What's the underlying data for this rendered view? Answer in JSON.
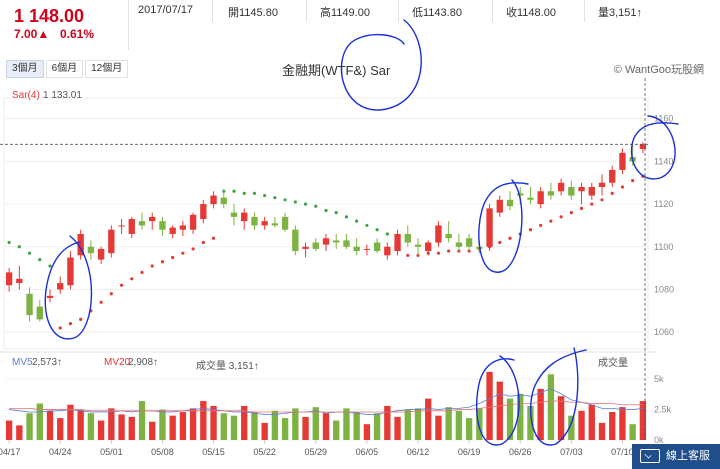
{
  "quote": {
    "price": "1 148.00",
    "change": "7.00▲",
    "change_pct": "0.61%",
    "date": "2017/07/17",
    "open": "開1145.80",
    "high": "高1149.00",
    "low": "低1143.80",
    "close": "收1148.00",
    "volume": "量3,151↑"
  },
  "tabs": [
    "3個月",
    "6個月",
    "12個月"
  ],
  "title": "金融期(WTF&) Sar",
  "brand": "© WantGoo玩股網",
  "indicator": {
    "sar_label": "Sar(4)",
    "sar_value": "1 133.01"
  },
  "volume_panel": {
    "mv5_label": "MV5",
    "mv5_value": "2,573↑",
    "mv20_label": "MV20",
    "mv20_value": "2,908↑",
    "vol_label": "成交量 3,151↑",
    "vol_name": "成交量"
  },
  "service": {
    "label": "線上客服"
  },
  "colors": {
    "up": "#e53935",
    "down": "#7cb342",
    "sar_up": "#e53935",
    "sar_down": "#43a047",
    "mv5": "#5b7fd6",
    "mv20": "#e57373",
    "annotation": "#1a2fd6"
  },
  "chart_data": {
    "type": "candlestick",
    "title": "金融期(WTF&) Sar",
    "x_tick_labels": [
      "04/17",
      "04/24",
      "05/01",
      "05/08",
      "05/15",
      "05/22",
      "05/29",
      "06/05",
      "06/12",
      "06/19",
      "06/26",
      "07/03",
      "07/10"
    ],
    "price_axis": {
      "ticks": [
        1060,
        1080,
        1100,
        1120,
        1140,
        1160
      ],
      "range": [
        1054,
        1165
      ],
      "current": 1148
    },
    "volume_axis": {
      "ticks": [
        "0k",
        "2.5k",
        "5k"
      ],
      "range": [
        0,
        6
      ]
    },
    "ohlc": [
      [
        1082,
        1090,
        1079,
        1088
      ],
      [
        1083,
        1091,
        1080,
        1085
      ],
      [
        1078,
        1081,
        1065,
        1068
      ],
      [
        1072,
        1075,
        1065,
        1066
      ],
      [
        1076,
        1080,
        1074,
        1077
      ],
      [
        1080,
        1086,
        1078,
        1083
      ],
      [
        1082,
        1098,
        1080,
        1095
      ],
      [
        1096,
        1108,
        1094,
        1106
      ],
      [
        1100,
        1103,
        1094,
        1097
      ],
      [
        1094,
        1100,
        1092,
        1099
      ],
      [
        1097,
        1110,
        1095,
        1108
      ],
      [
        1110,
        1113,
        1106,
        1110
      ],
      [
        1106,
        1114,
        1104,
        1113
      ],
      [
        1112,
        1116,
        1108,
        1110
      ],
      [
        1112,
        1116,
        1108,
        1114
      ],
      [
        1112,
        1114,
        1105,
        1108
      ],
      [
        1106,
        1110,
        1104,
        1109
      ],
      [
        1108,
        1112,
        1105,
        1110
      ],
      [
        1108,
        1116,
        1106,
        1115
      ],
      [
        1113,
        1122,
        1111,
        1120
      ],
      [
        1120,
        1126,
        1118,
        1124
      ],
      [
        1123,
        1127,
        1118,
        1120
      ],
      [
        1116,
        1120,
        1110,
        1114
      ],
      [
        1112,
        1118,
        1108,
        1116
      ],
      [
        1114,
        1116,
        1108,
        1110
      ],
      [
        1110,
        1114,
        1108,
        1112
      ],
      [
        1111,
        1114,
        1109,
        1110
      ],
      [
        1114,
        1116,
        1107,
        1108
      ],
      [
        1108,
        1110,
        1096,
        1098
      ],
      [
        1099,
        1102,
        1095,
        1100
      ],
      [
        1102,
        1104,
        1098,
        1099
      ],
      [
        1101,
        1106,
        1098,
        1104
      ],
      [
        1103,
        1106,
        1099,
        1102
      ],
      [
        1103,
        1106,
        1099,
        1100
      ],
      [
        1100,
        1104,
        1096,
        1098
      ],
      [
        1099,
        1101,
        1096,
        1099
      ],
      [
        1102,
        1104,
        1097,
        1098
      ],
      [
        1096,
        1102,
        1094,
        1100
      ],
      [
        1098,
        1108,
        1096,
        1106
      ],
      [
        1106,
        1110,
        1100,
        1102
      ],
      [
        1101,
        1104,
        1096,
        1100
      ],
      [
        1098,
        1103,
        1096,
        1102
      ],
      [
        1102,
        1112,
        1100,
        1110
      ],
      [
        1106,
        1112,
        1102,
        1104
      ],
      [
        1102,
        1106,
        1098,
        1100
      ],
      [
        1104,
        1106,
        1098,
        1100
      ],
      [
        1100,
        1103,
        1097,
        1099
      ],
      [
        1100,
        1120,
        1098,
        1118
      ],
      [
        1116,
        1124,
        1114,
        1122
      ],
      [
        1122,
        1126,
        1117,
        1119
      ],
      [
        1125,
        1128,
        1120,
        1124
      ],
      [
        1123,
        1128,
        1120,
        1122
      ],
      [
        1120,
        1128,
        1118,
        1126
      ],
      [
        1126,
        1130,
        1122,
        1124
      ],
      [
        1126,
        1132,
        1124,
        1130
      ],
      [
        1128,
        1131,
        1122,
        1124
      ],
      [
        1126,
        1130,
        1120,
        1128
      ],
      [
        1124,
        1130,
        1122,
        1128
      ],
      [
        1128,
        1134,
        1124,
        1130
      ],
      [
        1130,
        1138,
        1128,
        1136
      ],
      [
        1136,
        1146,
        1134,
        1144
      ],
      [
        1142,
        1148,
        1138,
        1140
      ],
      [
        1145.8,
        1149,
        1143.8,
        1148
      ]
    ],
    "sar": [
      {
        "v": 1102,
        "pos": "above"
      },
      {
        "v": 1100,
        "pos": "above"
      },
      {
        "v": 1097,
        "pos": "above"
      },
      {
        "v": 1094,
        "pos": "above"
      },
      {
        "v": 1091,
        "pos": "above"
      },
      {
        "v": 1062,
        "pos": "below"
      },
      {
        "v": 1064,
        "pos": "below"
      },
      {
        "v": 1066,
        "pos": "below"
      },
      {
        "v": 1070,
        "pos": "below"
      },
      {
        "v": 1074,
        "pos": "below"
      },
      {
        "v": 1078,
        "pos": "below"
      },
      {
        "v": 1082,
        "pos": "below"
      },
      {
        "v": 1085,
        "pos": "below"
      },
      {
        "v": 1088,
        "pos": "below"
      },
      {
        "v": 1091,
        "pos": "below"
      },
      {
        "v": 1093,
        "pos": "below"
      },
      {
        "v": 1095,
        "pos": "below"
      },
      {
        "v": 1097,
        "pos": "below"
      },
      {
        "v": 1099,
        "pos": "below"
      },
      {
        "v": 1102,
        "pos": "below"
      },
      {
        "v": 1104,
        "pos": "below"
      },
      {
        "v": 1126,
        "pos": "above"
      },
      {
        "v": 1126,
        "pos": "above"
      },
      {
        "v": 1125,
        "pos": "above"
      },
      {
        "v": 1125,
        "pos": "above"
      },
      {
        "v": 1124,
        "pos": "above"
      },
      {
        "v": 1123,
        "pos": "above"
      },
      {
        "v": 1122,
        "pos": "above"
      },
      {
        "v": 1121,
        "pos": "above"
      },
      {
        "v": 1120,
        "pos": "above"
      },
      {
        "v": 1119,
        "pos": "above"
      },
      {
        "v": 1117,
        "pos": "above"
      },
      {
        "v": 1116,
        "pos": "above"
      },
      {
        "v": 1114,
        "pos": "above"
      },
      {
        "v": 1112,
        "pos": "above"
      },
      {
        "v": 1110,
        "pos": "above"
      },
      {
        "v": 1108,
        "pos": "above"
      },
      {
        "v": 1106,
        "pos": "above"
      },
      {
        "v": 1104,
        "pos": "above"
      },
      {
        "v": 1096,
        "pos": "below"
      },
      {
        "v": 1096,
        "pos": "below"
      },
      {
        "v": 1097,
        "pos": "below"
      },
      {
        "v": 1097,
        "pos": "below"
      },
      {
        "v": 1098,
        "pos": "below"
      },
      {
        "v": 1098,
        "pos": "below"
      },
      {
        "v": 1098,
        "pos": "below"
      },
      {
        "v": 1099,
        "pos": "below"
      },
      {
        "v": 1100,
        "pos": "below"
      },
      {
        "v": 1102,
        "pos": "below"
      },
      {
        "v": 1104,
        "pos": "below"
      },
      {
        "v": 1106,
        "pos": "below"
      },
      {
        "v": 1108,
        "pos": "below"
      },
      {
        "v": 1110,
        "pos": "below"
      },
      {
        "v": 1112,
        "pos": "below"
      },
      {
        "v": 1114,
        "pos": "below"
      },
      {
        "v": 1116,
        "pos": "below"
      },
      {
        "v": 1118,
        "pos": "below"
      },
      {
        "v": 1120,
        "pos": "below"
      },
      {
        "v": 1122,
        "pos": "below"
      },
      {
        "v": 1125,
        "pos": "below"
      },
      {
        "v": 1128,
        "pos": "below"
      },
      {
        "v": 1131,
        "pos": "below"
      },
      {
        "v": 1133,
        "pos": "below"
      }
    ],
    "volume_k": [
      1.6,
      1.2,
      2.2,
      3.0,
      2.4,
      1.8,
      2.9,
      2.5,
      2.2,
      1.6,
      2.6,
      2.1,
      1.9,
      3.2,
      1.5,
      2.5,
      2.0,
      2.3,
      2.6,
      3.2,
      2.8,
      2.2,
      2.0,
      2.8,
      2.3,
      1.4,
      2.4,
      1.8,
      2.6,
      1.9,
      2.7,
      2.2,
      1.6,
      2.6,
      2.3,
      1.3,
      2.2,
      2.8,
      1.9,
      2.5,
      2.6,
      3.4,
      2.0,
      2.7,
      2.4,
      1.8,
      2.6,
      5.6,
      4.8,
      3.4,
      3.8,
      2.8,
      4.2,
      5.4,
      3.6,
      2.0,
      2.4,
      2.9,
      1.4,
      2.3,
      2.7,
      1.3,
      3.2
    ],
    "mv5_k": [
      2.5,
      2.4,
      2.3,
      2.3,
      2.4,
      2.4,
      2.5,
      2.4,
      2.3,
      2.3,
      2.3,
      2.4,
      2.3,
      2.4,
      2.4,
      2.3,
      2.3,
      2.4,
      2.5,
      2.6,
      2.5,
      2.4,
      2.3,
      2.3,
      2.2,
      2.1,
      2.1,
      2.2,
      2.3,
      2.3,
      2.4,
      2.2,
      2.3,
      2.3,
      2.2,
      2.1,
      2.1,
      2.3,
      2.4,
      2.5,
      2.5,
      2.6,
      2.5,
      2.6,
      2.6,
      2.7,
      3.0,
      3.4,
      3.8,
      3.6,
      3.7,
      3.6,
      3.9,
      4.2,
      3.8,
      3.3,
      3.1,
      2.9,
      2.6,
      2.6,
      2.5,
      2.5,
      2.6
    ],
    "mv20_k": [
      2.6,
      2.6,
      2.6,
      2.5,
      2.5,
      2.5,
      2.5,
      2.5,
      2.4,
      2.4,
      2.4,
      2.4,
      2.4,
      2.4,
      2.4,
      2.4,
      2.4,
      2.4,
      2.4,
      2.4,
      2.4,
      2.4,
      2.4,
      2.4,
      2.3,
      2.3,
      2.3,
      2.3,
      2.3,
      2.3,
      2.3,
      2.3,
      2.3,
      2.3,
      2.3,
      2.3,
      2.3,
      2.3,
      2.3,
      2.3,
      2.4,
      2.4,
      2.4,
      2.4,
      2.5,
      2.5,
      2.6,
      2.7,
      2.8,
      2.9,
      3.0,
      3.0,
      3.1,
      3.2,
      3.2,
      3.1,
      3.1,
      3.0,
      3.0,
      3.0,
      2.9,
      2.9,
      2.9
    ]
  }
}
